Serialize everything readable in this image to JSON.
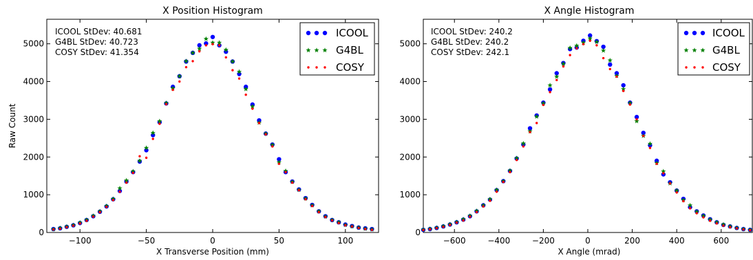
{
  "chart_data": [
    {
      "type": "scatter",
      "title": "X Position Histogram",
      "xlabel": "X Transverse Position (mm)",
      "ylabel": "Raw Count",
      "xlim": [
        -125,
        125
      ],
      "ylim": [
        0,
        5650
      ],
      "xticks": [
        -100,
        -50,
        0,
        50,
        100
      ],
      "yticks": [
        0,
        1000,
        2000,
        3000,
        4000,
        5000
      ],
      "annotations": [
        "ICOOL StDev: 40.681",
        "G4BL StDev: 40.723",
        "COSY StDev: 41.354"
      ],
      "legend_position": "top-right",
      "series": [
        {
          "name": "ICOOL",
          "color": "#0000ff",
          "marker": "circle",
          "x": [
            -120,
            -115,
            -110,
            -105,
            -100,
            -95,
            -90,
            -85,
            -80,
            -75,
            -70,
            -65,
            -60,
            -55,
            -50,
            -45,
            -40,
            -35,
            -30,
            -25,
            -20,
            -15,
            -10,
            -5,
            0,
            5,
            10,
            15,
            20,
            25,
            30,
            35,
            40,
            45,
            50,
            55,
            60,
            65,
            70,
            75,
            80,
            85,
            90,
            95,
            100,
            105,
            110,
            115,
            120
          ],
          "y": [
            90,
            110,
            150,
            190,
            250,
            330,
            430,
            550,
            690,
            880,
            1100,
            1350,
            1600,
            1880,
            2180,
            2580,
            2920,
            3420,
            3860,
            4140,
            4530,
            4760,
            4960,
            5010,
            5180,
            4960,
            4790,
            4530,
            4200,
            3860,
            3390,
            2970,
            2620,
            2330,
            1940,
            1600,
            1350,
            1140,
            910,
            730,
            560,
            430,
            330,
            270,
            210,
            170,
            130,
            110,
            90
          ]
        },
        {
          "name": "G4BL",
          "color": "#008000",
          "marker": "star",
          "x": [
            -120,
            -115,
            -110,
            -105,
            -100,
            -95,
            -90,
            -85,
            -80,
            -75,
            -70,
            -65,
            -60,
            -55,
            -50,
            -45,
            -40,
            -35,
            -30,
            -25,
            -20,
            -15,
            -10,
            -5,
            0,
            5,
            10,
            15,
            20,
            25,
            30,
            35,
            40,
            45,
            50,
            55,
            60,
            65,
            70,
            75,
            80,
            85,
            90,
            95,
            100,
            105,
            110,
            115,
            120
          ],
          "y": [
            85,
            115,
            155,
            195,
            260,
            335,
            440,
            560,
            700,
            890,
            1170,
            1380,
            1620,
            1900,
            2240,
            2640,
            2950,
            3430,
            3820,
            4140,
            4540,
            4760,
            4870,
            5130,
            5030,
            5030,
            4840,
            4530,
            4260,
            3800,
            3340,
            2910,
            2620,
            2320,
            1860,
            1630,
            1340,
            1130,
            900,
            720,
            560,
            420,
            330,
            270,
            200,
            160,
            130,
            100,
            80
          ]
        },
        {
          "name": "COSY",
          "color": "#ff0000",
          "marker": "dot",
          "x": [
            -120,
            -115,
            -110,
            -105,
            -100,
            -95,
            -90,
            -85,
            -80,
            -75,
            -70,
            -65,
            -60,
            -55,
            -50,
            -45,
            -40,
            -35,
            -30,
            -25,
            -20,
            -15,
            -10,
            -5,
            0,
            5,
            10,
            15,
            20,
            25,
            30,
            35,
            40,
            45,
            50,
            55,
            60,
            65,
            70,
            75,
            80,
            85,
            90,
            95,
            100,
            105,
            110,
            115,
            120
          ],
          "y": [
            80,
            100,
            140,
            180,
            240,
            310,
            420,
            540,
            680,
            860,
            1080,
            1320,
            1580,
            2020,
            1980,
            2480,
            2880,
            3400,
            3780,
            4000,
            4380,
            4540,
            4800,
            4960,
            4990,
            4960,
            4640,
            4300,
            4080,
            3650,
            3280,
            2900,
            2600,
            2280,
            1820,
            1600,
            1320,
            1120,
            880,
            700,
            540,
            410,
            320,
            250,
            190,
            160,
            120,
            90,
            70
          ]
        }
      ]
    },
    {
      "type": "scatter",
      "title": "X Angle Histogram",
      "xlabel": "X Angle (mrad)",
      "ylabel": "",
      "xlim": [
        -740,
        740
      ],
      "ylim": [
        0,
        5650
      ],
      "xticks": [
        -600,
        -400,
        -200,
        0,
        200,
        400,
        600
      ],
      "yticks": [
        0,
        1000,
        2000,
        3000,
        4000,
        5000
      ],
      "annotations": [
        "ICOOL StDev: 240.2",
        "G4BL StDev: 240.2",
        "COSY StDev: 242.1"
      ],
      "legend_position": "top-right",
      "series": [
        {
          "name": "ICOOL",
          "color": "#0000ff",
          "marker": "circle",
          "x": [
            -740,
            -710,
            -680,
            -650,
            -620,
            -590,
            -560,
            -530,
            -500,
            -470,
            -440,
            -410,
            -380,
            -350,
            -320,
            -290,
            -260,
            -230,
            -200,
            -170,
            -140,
            -110,
            -80,
            -50,
            -20,
            10,
            40,
            70,
            100,
            130,
            160,
            190,
            220,
            250,
            280,
            310,
            340,
            370,
            400,
            430,
            460,
            490,
            520,
            550,
            580,
            610,
            640,
            670,
            700,
            730
          ],
          "y": [
            70,
            90,
            120,
            160,
            210,
            270,
            340,
            430,
            560,
            720,
            870,
            1120,
            1360,
            1630,
            1960,
            2330,
            2760,
            3100,
            3440,
            3790,
            4220,
            4490,
            4860,
            4900,
            5080,
            5220,
            5070,
            4920,
            4450,
            4220,
            3900,
            3440,
            3060,
            2640,
            2310,
            1900,
            1540,
            1330,
            1110,
            890,
            670,
            560,
            450,
            350,
            270,
            200,
            160,
            120,
            90,
            70
          ]
        },
        {
          "name": "G4BL",
          "color": "#008000",
          "marker": "star",
          "x": [
            -740,
            -710,
            -680,
            -650,
            -620,
            -590,
            -560,
            -530,
            -500,
            -470,
            -440,
            -410,
            -380,
            -350,
            -320,
            -290,
            -260,
            -230,
            -200,
            -170,
            -140,
            -110,
            -80,
            -50,
            -20,
            10,
            40,
            70,
            100,
            130,
            160,
            190,
            220,
            250,
            280,
            310,
            340,
            370,
            400,
            430,
            460,
            490,
            520,
            550,
            580,
            610,
            640,
            670,
            700,
            730
          ],
          "y": [
            75,
            95,
            125,
            165,
            215,
            275,
            350,
            440,
            570,
            720,
            880,
            1130,
            1360,
            1640,
            1970,
            2360,
            2680,
            3070,
            3420,
            3900,
            4130,
            4470,
            4890,
            4950,
            5030,
            5140,
            5050,
            4820,
            4560,
            4150,
            3800,
            3430,
            2950,
            2560,
            2350,
            1840,
            1620,
            1300,
            1110,
            860,
            720,
            550,
            440,
            340,
            270,
            210,
            160,
            120,
            90,
            70
          ]
        },
        {
          "name": "COSY",
          "color": "#ff0000",
          "marker": "dot",
          "x": [
            -740,
            -710,
            -680,
            -650,
            -620,
            -590,
            -560,
            -530,
            -500,
            -470,
            -440,
            -410,
            -380,
            -350,
            -320,
            -290,
            -260,
            -230,
            -200,
            -170,
            -140,
            -110,
            -80,
            -50,
            -20,
            10,
            40,
            70,
            100,
            130,
            160,
            190,
            220,
            250,
            280,
            310,
            340,
            370,
            400,
            430,
            460,
            490,
            520,
            550,
            580,
            610,
            640,
            670,
            700,
            730
          ],
          "y": [
            65,
            85,
            115,
            150,
            200,
            260,
            320,
            420,
            540,
            690,
            840,
            1080,
            1340,
            1600,
            1920,
            2280,
            2660,
            2900,
            3380,
            3720,
            4040,
            4400,
            4700,
            4880,
            4990,
            5080,
            4960,
            4620,
            4330,
            4130,
            3750,
            3390,
            3000,
            2560,
            2240,
            1820,
            1570,
            1300,
            1060,
            830,
            640,
            510,
            400,
            310,
            240,
            180,
            140,
            110,
            80,
            60
          ]
        }
      ]
    }
  ]
}
